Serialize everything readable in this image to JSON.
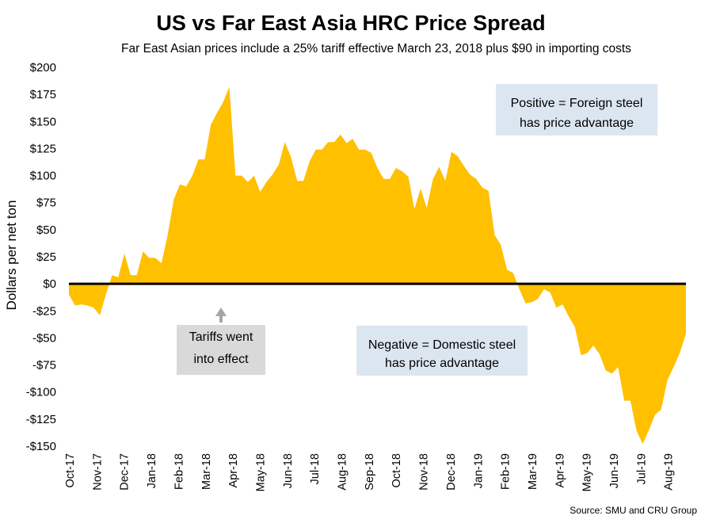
{
  "chart_data": {
    "type": "area",
    "title": "US vs Far East Asia HRC Price Spread",
    "subtitle": "Far East Asian prices include a 25% tariff effective March 23, 2018 plus $90 in importing costs",
    "ylabel": "Dollars per net ton",
    "xlabel": "",
    "source": "Source: SMU and CRU Group",
    "ylim": [
      -150,
      200
    ],
    "y_ticks": [
      200,
      175,
      150,
      125,
      100,
      75,
      50,
      25,
      0,
      -25,
      -50,
      -75,
      -100,
      -125,
      -150
    ],
    "y_tick_labels": [
      "$200",
      "$175",
      "$150",
      "$125",
      "$100",
      "$75",
      "$50",
      "$25",
      "$0",
      "-$25",
      "-$50",
      "-$75",
      "-$100",
      "-$125",
      "-$150"
    ],
    "x_tick_labels": [
      "Oct-17",
      "Nov-17",
      "Dec-17",
      "Jan-18",
      "Feb-18",
      "Mar-18",
      "Apr-18",
      "May-18",
      "Jun-18",
      "Jul-18",
      "Aug-18",
      "Sep-18",
      "Oct-18",
      "Nov-18",
      "Dec-18",
      "Jan-19",
      "Feb-19",
      "Mar-19",
      "Apr-19",
      "May-19",
      "Jun-19",
      "Jul-19",
      "Aug-19"
    ],
    "fill_color": "#ffc000",
    "zero_line_color": "#000000",
    "values": [
      -10,
      -20,
      -19,
      -20,
      -22,
      -29,
      -10,
      8,
      6,
      28,
      8,
      8,
      30,
      24,
      24,
      19,
      45,
      78,
      92,
      90,
      100,
      115,
      115,
      147,
      158,
      168,
      182,
      100,
      100,
      94,
      100,
      85,
      94,
      101,
      110,
      131,
      117,
      95,
      95,
      113,
      124,
      124,
      131,
      131,
      138,
      130,
      134,
      124,
      124,
      121,
      107,
      97,
      97,
      107,
      104,
      99,
      69,
      88,
      70,
      97,
      108,
      95,
      122,
      118,
      109,
      101,
      97,
      89,
      86,
      45,
      36,
      13,
      10,
      -5,
      -18,
      -17,
      -14,
      -5,
      -8,
      -22,
      -19,
      -30,
      -40,
      -66,
      -64,
      -57,
      -65,
      -80,
      -83,
      -77,
      -108,
      -108,
      -136,
      -148,
      -135,
      -121,
      -116,
      -89,
      -77,
      -64,
      -46
    ],
    "annotations": [
      {
        "text_lines": [
          "Tariffs went",
          "into effect"
        ],
        "fill": "#d9d9d9",
        "arrow_color": "#a6a6a6"
      },
      {
        "text_lines": [
          "Positive = Foreign steel",
          "has price advantage"
        ],
        "fill": "#dce6f1"
      },
      {
        "text_lines": [
          "Negative = Domestic steel",
          "has price advantage"
        ],
        "fill": "#dce6f1"
      }
    ]
  }
}
